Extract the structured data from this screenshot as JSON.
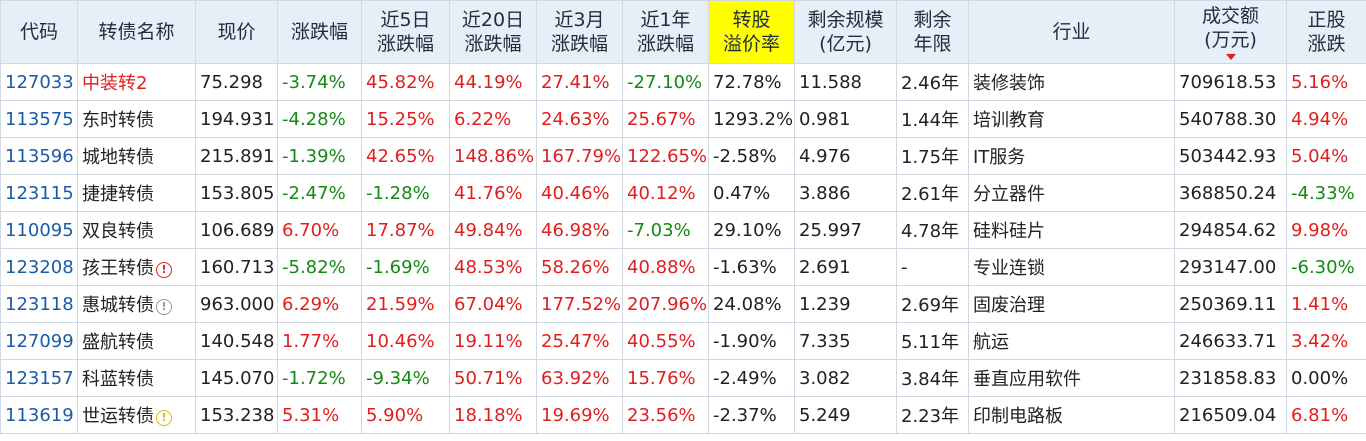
{
  "headers": [
    {
      "key": "code",
      "label": "代码"
    },
    {
      "key": "name",
      "label": "转债名称"
    },
    {
      "key": "price",
      "label": "现价"
    },
    {
      "key": "chg",
      "label": "涨跌幅"
    },
    {
      "key": "chg5d",
      "label": "近5日\n涨跌幅"
    },
    {
      "key": "chg20d",
      "label": "近20日\n涨跌幅"
    },
    {
      "key": "chg3m",
      "label": "近3月\n涨跌幅"
    },
    {
      "key": "chg1y",
      "label": "近1年\n涨跌幅"
    },
    {
      "key": "premium",
      "label": "转股\n溢价率",
      "highlight": true
    },
    {
      "key": "remain_size",
      "label": "剩余规模\n(亿元)"
    },
    {
      "key": "remain_years",
      "label": "剩余\n年限"
    },
    {
      "key": "industry",
      "label": "行业"
    },
    {
      "key": "volume",
      "label": "成交额\n(万元)",
      "sorted": "desc"
    },
    {
      "key": "stock_chg",
      "label": "正股\n涨跌"
    }
  ],
  "colors": {
    "up": "#e01e1e",
    "down": "#138a13",
    "code": "#1a5ba8",
    "header_bg": "#e6eef8",
    "highlight": "#ffff00"
  },
  "rows": [
    {
      "code": "127033",
      "name": "中装转2",
      "name_red": true,
      "badge": "",
      "price": "75.298",
      "chg": "-3.74%",
      "chg5d": "45.82%",
      "chg20d": "44.19%",
      "chg3m": "27.41%",
      "chg1y": "-27.10%",
      "premium": "72.78%",
      "remain_size": "11.588",
      "remain_years": "2.46年",
      "industry": "装修装饰",
      "volume": "709618.53",
      "stock_chg": "5.16%"
    },
    {
      "code": "113575",
      "name": "东时转债",
      "badge": "",
      "price": "194.931",
      "chg": "-4.28%",
      "chg5d": "15.25%",
      "chg20d": "6.22%",
      "chg3m": "24.63%",
      "chg1y": "25.67%",
      "premium": "1293.2%",
      "remain_size": "0.981",
      "remain_years": "1.44年",
      "industry": "培训教育",
      "volume": "540788.30",
      "stock_chg": "4.94%"
    },
    {
      "code": "113596",
      "name": "城地转债",
      "badge": "",
      "price": "215.891",
      "chg": "-1.39%",
      "chg5d": "42.65%",
      "chg20d": "148.86%",
      "chg3m": "167.79%",
      "chg1y": "122.65%",
      "premium": "-2.58%",
      "remain_size": "4.976",
      "remain_years": "1.75年",
      "industry": "IT服务",
      "volume": "503442.93",
      "stock_chg": "5.04%"
    },
    {
      "code": "123115",
      "name": "捷捷转债",
      "badge": "",
      "price": "153.805",
      "chg": "-2.47%",
      "chg5d": "-1.28%",
      "chg20d": "41.76%",
      "chg3m": "40.46%",
      "chg1y": "40.12%",
      "premium": "0.47%",
      "remain_size": "3.886",
      "remain_years": "2.61年",
      "industry": "分立器件",
      "volume": "368850.24",
      "stock_chg": "-4.33%"
    },
    {
      "code": "110095",
      "name": "双良转债",
      "badge": "",
      "price": "106.689",
      "chg": "6.70%",
      "chg5d": "17.87%",
      "chg20d": "49.84%",
      "chg3m": "46.98%",
      "chg1y": "-7.03%",
      "premium": "29.10%",
      "remain_size": "25.997",
      "remain_years": "4.78年",
      "industry": "硅料硅片",
      "volume": "294854.62",
      "stock_chg": "9.98%"
    },
    {
      "code": "123208",
      "name": "孩王转债",
      "badge": "danger",
      "badge_glyph": "!",
      "price": "160.713",
      "chg": "-5.82%",
      "chg5d": "-1.69%",
      "chg20d": "48.53%",
      "chg3m": "58.26%",
      "chg1y": "40.88%",
      "premium": "-1.63%",
      "remain_size": "2.691",
      "remain_years": "-",
      "industry": "专业连锁",
      "volume": "293147.00",
      "stock_chg": "-6.30%"
    },
    {
      "code": "123118",
      "name": "惠城转债",
      "badge": "info",
      "badge_glyph": "!",
      "price": "963.000",
      "chg": "6.29%",
      "chg5d": "21.59%",
      "chg20d": "67.04%",
      "chg3m": "177.52%",
      "chg1y": "207.96%",
      "premium": "24.08%",
      "remain_size": "1.239",
      "remain_years": "2.69年",
      "industry": "固废治理",
      "volume": "250369.11",
      "stock_chg": "1.41%"
    },
    {
      "code": "127099",
      "name": "盛航转债",
      "badge": "",
      "price": "140.548",
      "chg": "1.77%",
      "chg5d": "10.46%",
      "chg20d": "19.11%",
      "chg3m": "25.47%",
      "chg1y": "40.55%",
      "premium": "-1.90%",
      "remain_size": "7.335",
      "remain_years": "5.11年",
      "industry": "航运",
      "volume": "246633.71",
      "stock_chg": "3.42%"
    },
    {
      "code": "123157",
      "name": "科蓝转债",
      "badge": "",
      "price": "145.070",
      "chg": "-1.72%",
      "chg5d": "-9.34%",
      "chg20d": "50.71%",
      "chg3m": "63.92%",
      "chg1y": "15.76%",
      "premium": "-2.49%",
      "remain_size": "3.082",
      "remain_years": "3.84年",
      "industry": "垂直应用软件",
      "volume": "231858.83",
      "stock_chg": "0.00%"
    },
    {
      "code": "113619",
      "name": "世运转债",
      "badge": "warn",
      "badge_glyph": "!",
      "price": "153.238",
      "chg": "5.31%",
      "chg5d": "5.90%",
      "chg20d": "18.18%",
      "chg3m": "19.69%",
      "chg1y": "23.56%",
      "premium": "-2.37%",
      "remain_size": "5.249",
      "remain_years": "2.23年",
      "industry": "印制电路板",
      "volume": "216509.04",
      "stock_chg": "6.81%"
    }
  ]
}
